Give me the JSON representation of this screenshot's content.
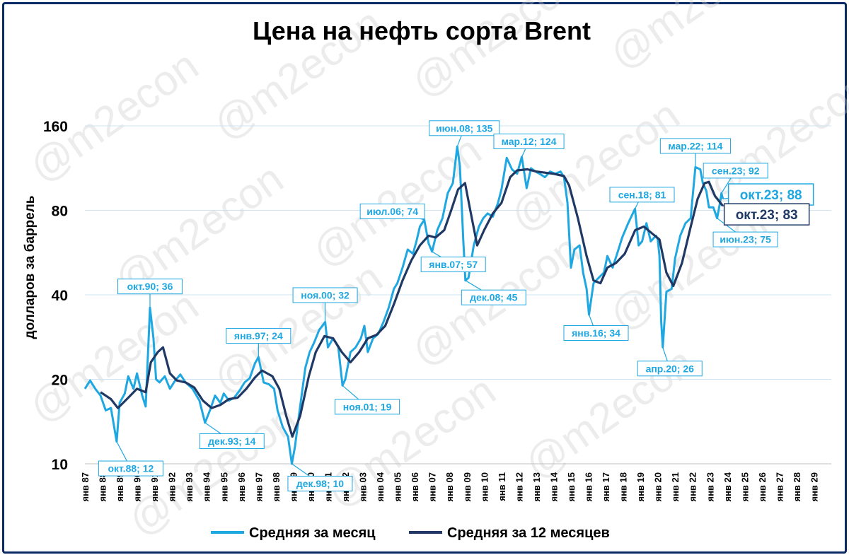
{
  "watermark": "@m2econ",
  "chart_data": {
    "type": "line",
    "title": "Цена на нефть сорта Brent",
    "ylabel": "долларов за баррель",
    "xlabel": "",
    "y_scale": "log",
    "ylim": [
      10,
      160
    ],
    "yticks": [
      10,
      20,
      40,
      80,
      160
    ],
    "grid": true,
    "legend_position": "bottom",
    "colors": {
      "monthly": "#1ea7e1",
      "avg12": "#1f3864"
    },
    "xlim": [
      1987.0,
      2030.0
    ],
    "x_tick_labels": [
      "янв 87",
      "янв 88",
      "янв 89",
      "янв 90",
      "янв 91",
      "янв 92",
      "янв 93",
      "янв 94",
      "янв 95",
      "янв 96",
      "янв 97",
      "янв 98",
      "янв 99",
      "янв 00",
      "янв 01",
      "янв 02",
      "янв 03",
      "янв 04",
      "янв 05",
      "янв 06",
      "янв 07",
      "янв 08",
      "янв 09",
      "янв 10",
      "янв 11",
      "янв 12",
      "янв 13",
      "янв 14",
      "янв 15",
      "янв 16",
      "янв 17",
      "янв 18",
      "янв 19",
      "янв 20",
      "янв 21",
      "янв 22",
      "янв 23",
      "янв 24",
      "янв 25",
      "янв 26",
      "янв 27",
      "янв 28",
      "янв 29"
    ],
    "series": [
      {
        "name": "Средняя за месяц",
        "points": [
          [
            1987.0,
            18.5
          ],
          [
            1987.3,
            19.8
          ],
          [
            1987.6,
            18.5
          ],
          [
            1987.9,
            17.5
          ],
          [
            1988.2,
            15.5
          ],
          [
            1988.5,
            15.8
          ],
          [
            1988.83,
            12
          ],
          [
            1989.0,
            16.5
          ],
          [
            1989.3,
            17.8
          ],
          [
            1989.5,
            20.5
          ],
          [
            1989.8,
            18.5
          ],
          [
            1990.0,
            21
          ],
          [
            1990.3,
            17.5
          ],
          [
            1990.5,
            16
          ],
          [
            1990.75,
            36
          ],
          [
            1990.95,
            28
          ],
          [
            1991.1,
            20
          ],
          [
            1991.3,
            19.5
          ],
          [
            1991.6,
            20.5
          ],
          [
            1991.9,
            18.5
          ],
          [
            1992.2,
            19.8
          ],
          [
            1992.5,
            20.8
          ],
          [
            1992.8,
            19.5
          ],
          [
            1993.2,
            18.5
          ],
          [
            1993.6,
            16.8
          ],
          [
            1993.92,
            14
          ],
          [
            1994.2,
            15.5
          ],
          [
            1994.5,
            17.5
          ],
          [
            1994.8,
            16.5
          ],
          [
            1995.0,
            17.8
          ],
          [
            1995.3,
            16.8
          ],
          [
            1995.6,
            17.2
          ],
          [
            1995.9,
            18.2
          ],
          [
            1996.2,
            19.5
          ],
          [
            1996.5,
            20.2
          ],
          [
            1996.8,
            22.8
          ],
          [
            1997.0,
            24
          ],
          [
            1997.3,
            19.5
          ],
          [
            1997.6,
            19.2
          ],
          [
            1997.9,
            18.5
          ],
          [
            1998.1,
            15.5
          ],
          [
            1998.4,
            13.5
          ],
          [
            1998.7,
            12.5
          ],
          [
            1998.92,
            10
          ],
          [
            1999.1,
            11.5
          ],
          [
            1999.4,
            16
          ],
          [
            1999.7,
            22
          ],
          [
            1999.95,
            25
          ],
          [
            2000.2,
            27
          ],
          [
            2000.5,
            30
          ],
          [
            2000.84,
            32
          ],
          [
            2001.0,
            26
          ],
          [
            2001.3,
            28
          ],
          [
            2001.6,
            26
          ],
          [
            2001.84,
            19
          ],
          [
            2002.0,
            20
          ],
          [
            2002.3,
            25
          ],
          [
            2002.6,
            26
          ],
          [
            2002.9,
            28
          ],
          [
            2003.1,
            31
          ],
          [
            2003.3,
            25
          ],
          [
            2003.6,
            28
          ],
          [
            2003.9,
            29
          ],
          [
            2004.2,
            32
          ],
          [
            2004.5,
            36
          ],
          [
            2004.8,
            42
          ],
          [
            2005.0,
            44
          ],
          [
            2005.3,
            50
          ],
          [
            2005.6,
            58
          ],
          [
            2005.9,
            56
          ],
          [
            2006.1,
            62
          ],
          [
            2006.3,
            70
          ],
          [
            2006.55,
            74
          ],
          [
            2006.8,
            61
          ],
          [
            2007.0,
            57
          ],
          [
            2007.3,
            68
          ],
          [
            2007.6,
            75
          ],
          [
            2007.9,
            92
          ],
          [
            2008.2,
            100
          ],
          [
            2008.45,
            135
          ],
          [
            2008.6,
            115
          ],
          [
            2008.8,
            62
          ],
          [
            2008.92,
            45
          ],
          [
            2009.1,
            46
          ],
          [
            2009.4,
            60
          ],
          [
            2009.7,
            70
          ],
          [
            2009.95,
            75
          ],
          [
            2010.2,
            78
          ],
          [
            2010.5,
            76
          ],
          [
            2010.8,
            85
          ],
          [
            2011.0,
            95
          ],
          [
            2011.3,
            123
          ],
          [
            2011.6,
            112
          ],
          [
            2011.9,
            108
          ],
          [
            2012.17,
            124
          ],
          [
            2012.45,
            96
          ],
          [
            2012.7,
            113
          ],
          [
            2012.95,
            110
          ],
          [
            2013.2,
            108
          ],
          [
            2013.5,
            105
          ],
          [
            2013.8,
            110
          ],
          [
            2014.1,
            108
          ],
          [
            2014.4,
            110
          ],
          [
            2014.6,
            105
          ],
          [
            2014.8,
            85
          ],
          [
            2015.0,
            50
          ],
          [
            2015.2,
            58
          ],
          [
            2015.5,
            60
          ],
          [
            2015.7,
            48
          ],
          [
            2015.9,
            42
          ],
          [
            2016.04,
            34
          ],
          [
            2016.3,
            44
          ],
          [
            2016.6,
            46
          ],
          [
            2016.9,
            48
          ],
          [
            2017.1,
            55
          ],
          [
            2017.4,
            50
          ],
          [
            2017.7,
            57
          ],
          [
            2017.95,
            64
          ],
          [
            2018.3,
            72
          ],
          [
            2018.69,
            81
          ],
          [
            2018.9,
            60
          ],
          [
            2019.1,
            62
          ],
          [
            2019.35,
            72
          ],
          [
            2019.6,
            62
          ],
          [
            2019.9,
            65
          ],
          [
            2020.0,
            63
          ],
          [
            2020.1,
            55
          ],
          [
            2020.2,
            32
          ],
          [
            2020.29,
            26
          ],
          [
            2020.5,
            41
          ],
          [
            2020.8,
            42
          ],
          [
            2021.0,
            54
          ],
          [
            2021.3,
            65
          ],
          [
            2021.6,
            72
          ],
          [
            2021.9,
            75
          ],
          [
            2022.0,
            88
          ],
          [
            2022.17,
            114
          ],
          [
            2022.45,
            112
          ],
          [
            2022.6,
            100
          ],
          [
            2022.8,
            94
          ],
          [
            2022.95,
            82
          ],
          [
            2023.2,
            82
          ],
          [
            2023.42,
            75
          ],
          [
            2023.6,
            86
          ],
          [
            2023.67,
            92
          ],
          [
            2023.75,
            88
          ]
        ]
      },
      {
        "name": "Средняя за 12 месяцев",
        "points": [
          [
            1987.9,
            18
          ],
          [
            1988.5,
            17
          ],
          [
            1988.9,
            15.8
          ],
          [
            1989.5,
            17.2
          ],
          [
            1990.0,
            18.5
          ],
          [
            1990.5,
            18
          ],
          [
            1990.8,
            23
          ],
          [
            1991.2,
            25
          ],
          [
            1991.5,
            26
          ],
          [
            1991.9,
            21
          ],
          [
            1992.3,
            19.8
          ],
          [
            1992.8,
            19.5
          ],
          [
            1993.3,
            18.7
          ],
          [
            1993.8,
            16.8
          ],
          [
            1994.3,
            15.8
          ],
          [
            1994.8,
            16.2
          ],
          [
            1995.3,
            17.0
          ],
          [
            1995.8,
            17.2
          ],
          [
            1996.3,
            18.5
          ],
          [
            1996.8,
            20.3
          ],
          [
            1997.2,
            21.5
          ],
          [
            1997.8,
            20.5
          ],
          [
            1998.2,
            18.5
          ],
          [
            1998.6,
            14.8
          ],
          [
            1998.95,
            12.5
          ],
          [
            1999.4,
            14.8
          ],
          [
            1999.9,
            20.5
          ],
          [
            2000.3,
            25
          ],
          [
            2000.8,
            28.5
          ],
          [
            2001.3,
            28
          ],
          [
            2001.8,
            25
          ],
          [
            2002.3,
            23
          ],
          [
            2002.8,
            25
          ],
          [
            2003.3,
            28
          ],
          [
            2003.8,
            28.8
          ],
          [
            2004.3,
            31
          ],
          [
            2004.8,
            37
          ],
          [
            2005.3,
            45
          ],
          [
            2005.8,
            53
          ],
          [
            2006.3,
            60
          ],
          [
            2006.8,
            65
          ],
          [
            2007.2,
            64
          ],
          [
            2007.7,
            68
          ],
          [
            2008.1,
            80
          ],
          [
            2008.5,
            95
          ],
          [
            2008.9,
            100
          ],
          [
            2009.2,
            80
          ],
          [
            2009.6,
            60
          ],
          [
            2010.0,
            68
          ],
          [
            2010.5,
            78
          ],
          [
            2011.0,
            85
          ],
          [
            2011.5,
            105
          ],
          [
            2011.9,
            111
          ],
          [
            2012.5,
            112
          ],
          [
            2013.0,
            110
          ],
          [
            2013.5,
            109
          ],
          [
            2014.0,
            108
          ],
          [
            2014.6,
            106
          ],
          [
            2014.9,
            98
          ],
          [
            2015.4,
            75
          ],
          [
            2015.9,
            55
          ],
          [
            2016.3,
            45
          ],
          [
            2016.7,
            44
          ],
          [
            2017.1,
            50
          ],
          [
            2017.6,
            52
          ],
          [
            2018.1,
            56
          ],
          [
            2018.7,
            68
          ],
          [
            2019.2,
            70
          ],
          [
            2019.7,
            66
          ],
          [
            2020.1,
            63
          ],
          [
            2020.5,
            48
          ],
          [
            2020.9,
            43
          ],
          [
            2021.4,
            52
          ],
          [
            2021.9,
            70
          ],
          [
            2022.3,
            88
          ],
          [
            2022.7,
            100
          ],
          [
            2022.95,
            101
          ],
          [
            2023.3,
            90
          ],
          [
            2023.75,
            83
          ]
        ]
      }
    ],
    "annotations": [
      {
        "text": "окт.88; 12",
        "x": 1988.83,
        "y": 12,
        "series": "Средняя за месяц"
      },
      {
        "text": "окт.90; 36",
        "x": 1990.75,
        "y": 36,
        "series": "Средняя за месяц"
      },
      {
        "text": "дек.93; 14",
        "x": 1993.92,
        "y": 14,
        "series": "Средняя за месяц"
      },
      {
        "text": "янв.97; 24",
        "x": 1997.0,
        "y": 24,
        "series": "Средняя за месяц"
      },
      {
        "text": "дек.98; 10",
        "x": 1998.92,
        "y": 10,
        "series": "Средняя за месяц"
      },
      {
        "text": "ноя.00; 32",
        "x": 2000.84,
        "y": 32,
        "series": "Средняя за месяц"
      },
      {
        "text": "ноя.01; 19",
        "x": 2001.84,
        "y": 19,
        "series": "Средняя за месяц"
      },
      {
        "text": "июл.06; 74",
        "x": 2006.55,
        "y": 74,
        "series": "Средняя за месяц"
      },
      {
        "text": "янв.07; 57",
        "x": 2007.0,
        "y": 57,
        "series": "Средняя за месяц"
      },
      {
        "text": "июн.08; 135",
        "x": 2008.45,
        "y": 135,
        "series": "Средняя за месяц"
      },
      {
        "text": "дек.08; 45",
        "x": 2008.92,
        "y": 45,
        "series": "Средняя за месяц"
      },
      {
        "text": "мар.12; 124",
        "x": 2012.17,
        "y": 124,
        "series": "Средняя за месяц"
      },
      {
        "text": "янв.16; 34",
        "x": 2016.04,
        "y": 34,
        "series": "Средняя за месяц"
      },
      {
        "text": "сен.18; 81",
        "x": 2018.69,
        "y": 81,
        "series": "Средняя за месяц"
      },
      {
        "text": "апр.20; 26",
        "x": 2020.29,
        "y": 26,
        "series": "Средняя за месяц"
      },
      {
        "text": "мар.22; 114",
        "x": 2022.17,
        "y": 114,
        "series": "Средняя за месяц"
      },
      {
        "text": "сен.23; 92",
        "x": 2023.67,
        "y": 92,
        "series": "Средняя за месяц"
      },
      {
        "text": "июн.23; 75",
        "x": 2023.42,
        "y": 75,
        "series": "Средняя за месяц"
      },
      {
        "text": "окт.23; 88",
        "x": 2023.75,
        "y": 88,
        "series": "Средняя за месяц"
      },
      {
        "text": "окт.23; 83",
        "x": 2023.75,
        "y": 83,
        "series": "Средняя за 12 месяцев"
      }
    ]
  }
}
